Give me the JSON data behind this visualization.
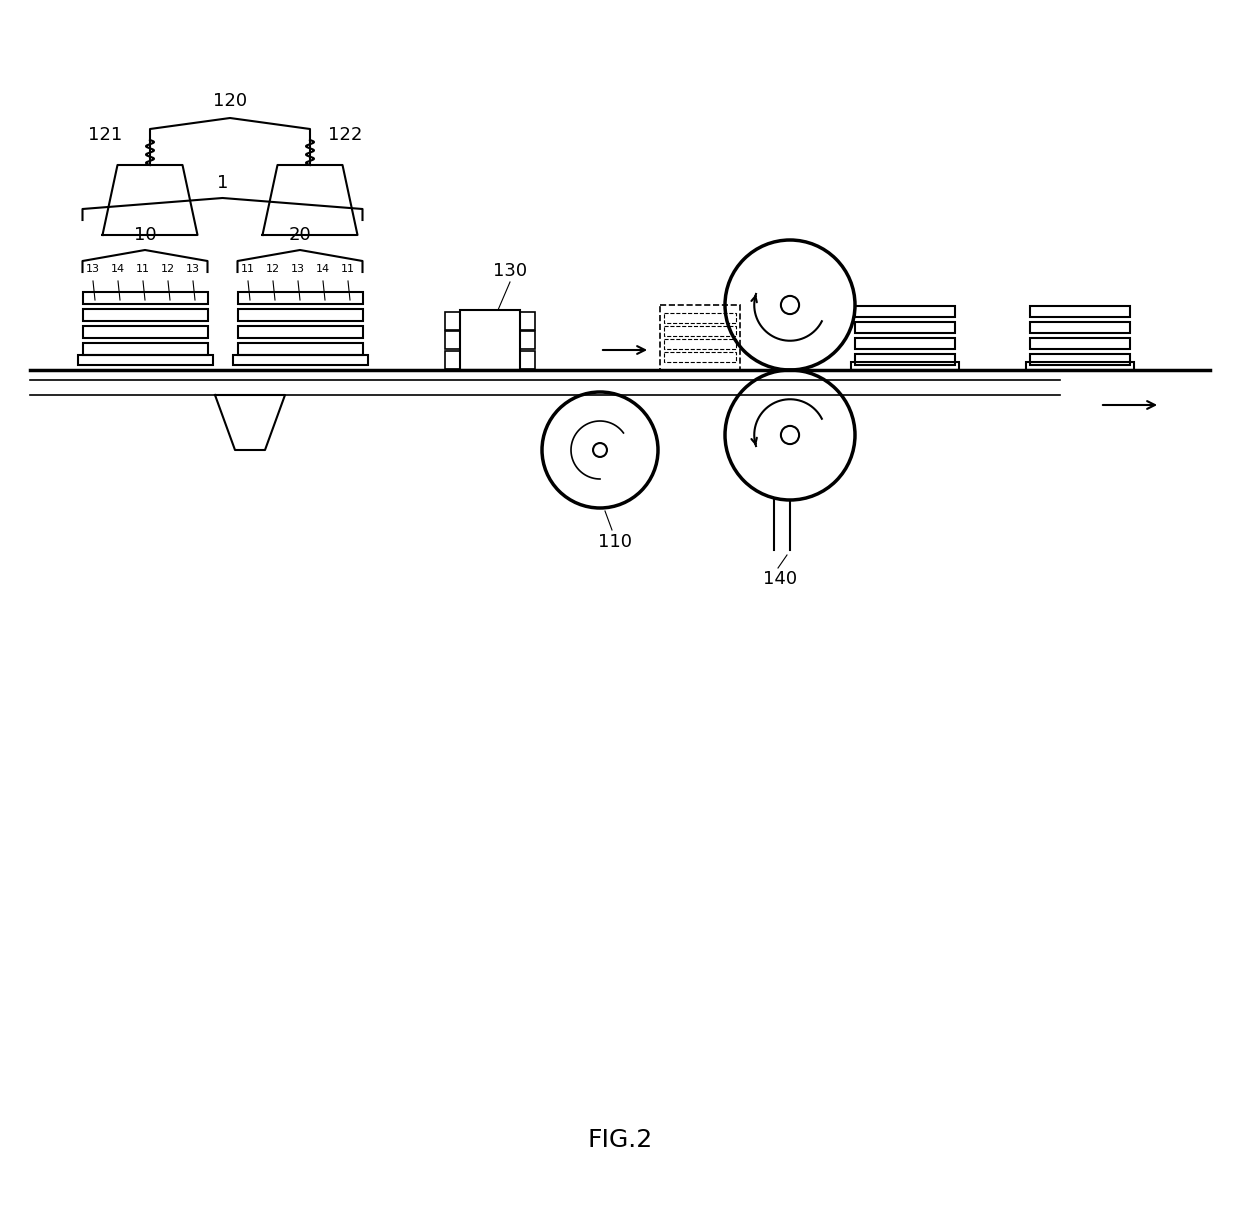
{
  "fig_label": "FIG.2",
  "background_color": "#ffffff",
  "line_color": "#000000",
  "figsize": [
    12.4,
    12.3
  ],
  "dpi": 100
}
